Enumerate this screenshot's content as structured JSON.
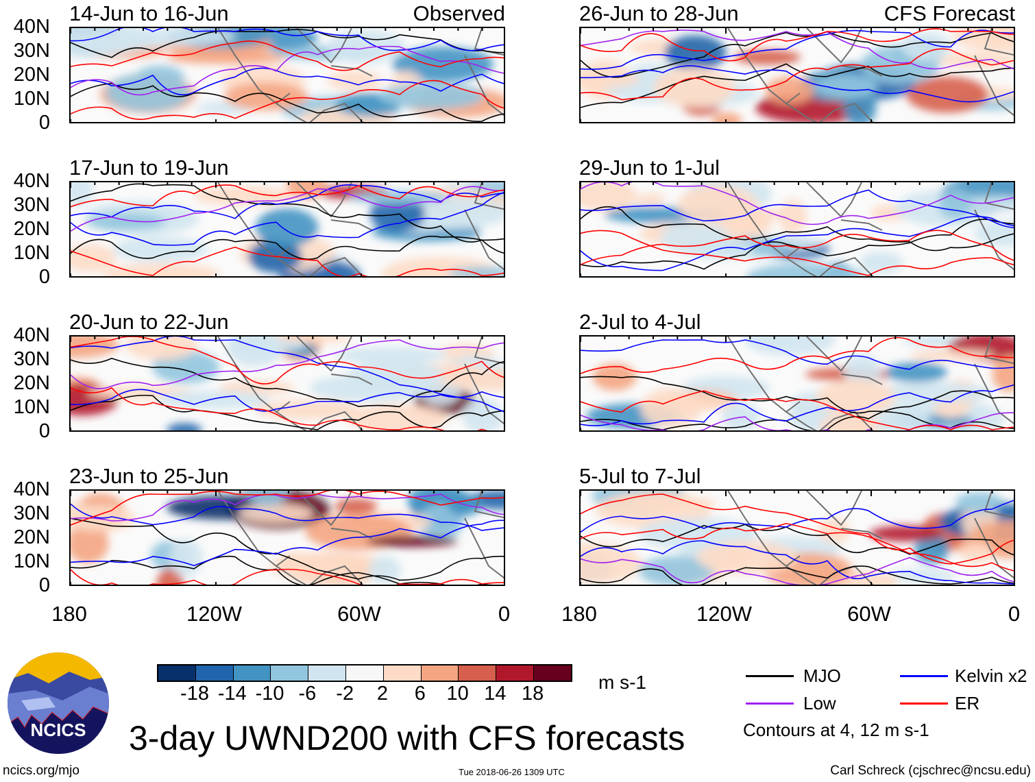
{
  "panels": [
    {
      "title": "14-Jun to 16-Jun",
      "label": "Observed",
      "col": 0,
      "row": 0
    },
    {
      "title": "17-Jun to 19-Jun",
      "label": "",
      "col": 0,
      "row": 1
    },
    {
      "title": "20-Jun to 22-Jun",
      "label": "",
      "col": 0,
      "row": 2
    },
    {
      "title": "23-Jun to 25-Jun",
      "label": "",
      "col": 0,
      "row": 3
    },
    {
      "title": "26-Jun to 28-Jun",
      "label": "CFS Forecast",
      "col": 1,
      "row": 0
    },
    {
      "title": "29-Jun to 1-Jul",
      "label": "",
      "col": 1,
      "row": 1
    },
    {
      "title": "2-Jul to 4-Jul",
      "label": "",
      "col": 1,
      "row": 2
    },
    {
      "title": "5-Jul to 7-Jul",
      "label": "",
      "col": 1,
      "row": 3
    }
  ],
  "lat_ticks": [
    "40N",
    "30N",
    "20N",
    "10N",
    "0"
  ],
  "lon_ticks": [
    "180",
    "120W",
    "60W",
    "0"
  ],
  "colorbar": {
    "colors": [
      "#08306b",
      "#2166ac",
      "#4393c3",
      "#92c5de",
      "#d1e5f0",
      "#f7f7f7",
      "#fddbc7",
      "#f4a582",
      "#d6604d",
      "#b2182b",
      "#67001f"
    ],
    "labels": [
      "-18",
      "-14",
      "-10",
      "-6",
      "-2",
      "2",
      "6",
      "10",
      "14",
      "18"
    ],
    "units": "m s-1"
  },
  "legend": {
    "items": [
      {
        "name": "MJO",
        "color": "#000000"
      },
      {
        "name": "Kelvin x2",
        "color": "#0000ff"
      },
      {
        "name": "Low",
        "color": "#a020f0"
      },
      {
        "name": "ER",
        "color": "#ff0000"
      }
    ],
    "note": "Contours at 4, 12 m s-1"
  },
  "title": "3-day UWND200 with CFS forecasts",
  "logo_text": "NCICS",
  "footer": {
    "left": "ncics.org/mjo",
    "center": "Tue 2018-06-26 1309 UTC",
    "right": "Carl Schreck (cjschrec@ncsu.edu)"
  }
}
